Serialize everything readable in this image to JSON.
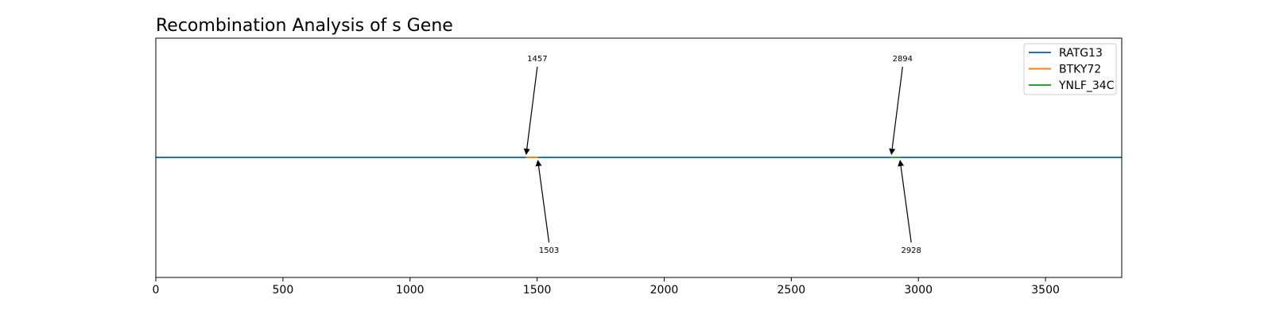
{
  "chart_data": {
    "type": "line",
    "title": "Recombination Analysis of s Gene",
    "xlabel": "",
    "ylabel": "",
    "xlim": [
      0,
      3800
    ],
    "ylim": [
      -1,
      1
    ],
    "x_ticks": [
      0,
      500,
      1000,
      1500,
      2000,
      2500,
      3000,
      3500
    ],
    "grid": false,
    "legend_position": "top-right",
    "series": [
      {
        "name": "RATG13",
        "color": "#1f77b4",
        "segments": [
          [
            0,
            1457
          ],
          [
            1503,
            2894
          ],
          [
            2928,
            3800
          ]
        ]
      },
      {
        "name": "BTKY72",
        "color": "#ff7f0e",
        "segments": [
          [
            1457,
            1503
          ]
        ]
      },
      {
        "name": "YNLF_34C",
        "color": "#2ca02c",
        "segments": [
          [
            2894,
            2928
          ]
        ]
      }
    ],
    "annotations": [
      {
        "label": "1457",
        "x": 1457,
        "side": "above"
      },
      {
        "label": "1503",
        "x": 1503,
        "side": "below"
      },
      {
        "label": "2894",
        "x": 2894,
        "side": "above"
      },
      {
        "label": "2928",
        "x": 2928,
        "side": "below"
      }
    ]
  }
}
